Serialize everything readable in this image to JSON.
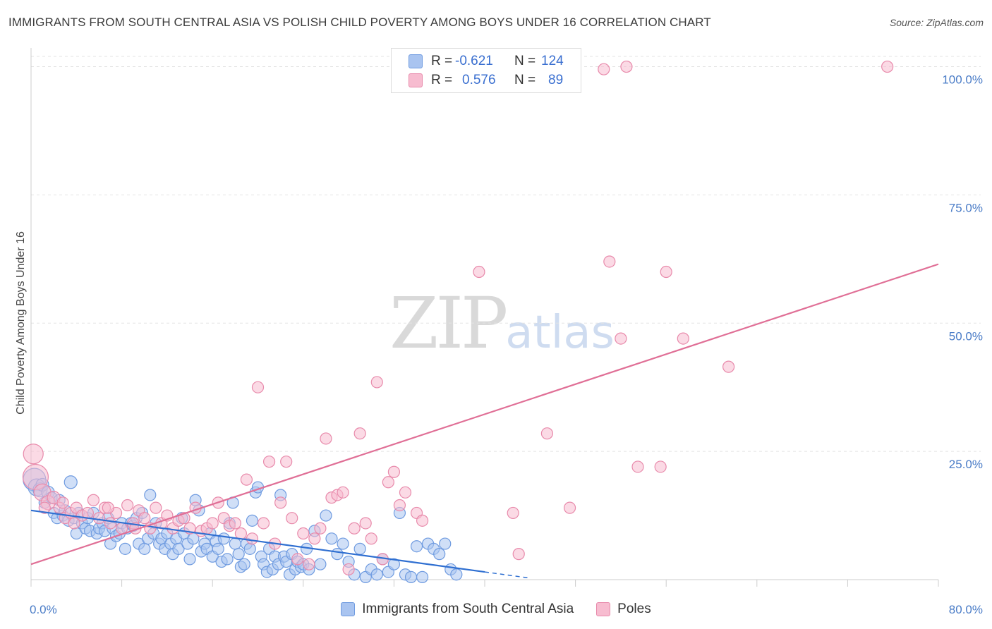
{
  "header": {
    "title": "IMMIGRANTS FROM SOUTH CENTRAL ASIA VS POLISH CHILD POVERTY AMONG BOYS UNDER 16 CORRELATION CHART",
    "source": "Source: ZipAtlas.com"
  },
  "watermark": {
    "zip": "ZIP",
    "atlas": "atlas"
  },
  "legend_top": {
    "rows": [
      {
        "r_label": "R =",
        "r_value": "-0.621",
        "n_label": "N =",
        "n_value": "124",
        "color": "#a9c4f0",
        "border": "#6f9be0"
      },
      {
        "r_label": "R =",
        "r_value": "0.576",
        "n_label": "N =",
        "n_value": "89",
        "color": "#f7bcd0",
        "border": "#e88aab"
      }
    ]
  },
  "chart_data": {
    "type": "scatter",
    "title": "IMMIGRANTS FROM SOUTH CENTRAL ASIA VS POLISH CHILD POVERTY AMONG BOYS UNDER 16 CORRELATION CHART",
    "xlabel": "",
    "ylabel": "Child Poverty Among Boys Under 16",
    "xlim": [
      0,
      80
    ],
    "ylim": [
      0,
      102
    ],
    "x_tick_labels": [
      "0.0%",
      "80.0%"
    ],
    "y_ticks": [
      25,
      50,
      75,
      100
    ],
    "y_tick_labels": [
      "25.0%",
      "50.0%",
      "75.0%",
      "100.0%"
    ],
    "grid": true,
    "legend_position": "bottom",
    "series": [
      {
        "name": "Immigrants from South Central Asia",
        "color": "#a9c4f0",
        "edge": "#6f9be0",
        "line_color": "#2f6fd1",
        "trend": {
          "x0": 0,
          "y0": 13.5,
          "x1": 40,
          "y1": 1.5,
          "dash_to_x": 44
        },
        "points": [
          [
            0.3,
            19.5,
            16
          ],
          [
            0.5,
            18,
            12
          ],
          [
            0.8,
            17.5,
            10
          ],
          [
            1.0,
            18.5,
            9
          ],
          [
            1.2,
            15,
            8
          ],
          [
            1.5,
            17,
            9
          ],
          [
            1.8,
            16,
            8
          ],
          [
            2.0,
            13,
            8
          ],
          [
            2.3,
            12,
            8
          ],
          [
            2.5,
            15.5,
            8
          ],
          [
            2.8,
            12.5,
            8
          ],
          [
            3.0,
            13.5,
            8
          ],
          [
            3.3,
            11.5,
            8
          ],
          [
            3.5,
            19,
            9
          ],
          [
            3.8,
            12,
            8
          ],
          [
            4.0,
            9,
            8
          ],
          [
            4.2,
            13,
            8
          ],
          [
            4.5,
            11,
            8
          ],
          [
            4.8,
            10,
            8
          ],
          [
            5.0,
            12,
            8
          ],
          [
            5.2,
            9.5,
            8
          ],
          [
            5.5,
            13,
            8
          ],
          [
            5.8,
            9,
            8
          ],
          [
            6.0,
            10,
            8
          ],
          [
            6.3,
            11,
            8
          ],
          [
            6.5,
            9.5,
            8
          ],
          [
            6.8,
            12,
            8
          ],
          [
            7.0,
            7,
            8
          ],
          [
            7.2,
            10,
            8
          ],
          [
            7.5,
            8.5,
            8
          ],
          [
            7.8,
            9,
            8
          ],
          [
            8.0,
            11,
            8
          ],
          [
            8.3,
            6,
            8
          ],
          [
            8.5,
            10,
            8
          ],
          [
            8.8,
            11,
            8
          ],
          [
            9.0,
            10.5,
            8
          ],
          [
            9.3,
            12,
            8
          ],
          [
            9.5,
            7,
            8
          ],
          [
            9.8,
            13,
            8
          ],
          [
            10.0,
            6,
            8
          ],
          [
            10.3,
            8,
            8
          ],
          [
            10.5,
            16.5,
            8
          ],
          [
            10.8,
            9,
            8
          ],
          [
            11.0,
            11,
            8
          ],
          [
            11.3,
            7,
            8
          ],
          [
            11.5,
            8,
            8
          ],
          [
            11.8,
            6,
            8
          ],
          [
            12.0,
            9,
            8
          ],
          [
            12.3,
            7,
            8
          ],
          [
            12.5,
            5,
            8
          ],
          [
            12.8,
            8,
            8
          ],
          [
            13.0,
            6,
            8
          ],
          [
            13.3,
            12,
            8
          ],
          [
            13.5,
            9,
            8
          ],
          [
            13.8,
            7,
            8
          ],
          [
            14.0,
            4,
            8
          ],
          [
            14.3,
            8,
            8
          ],
          [
            14.5,
            15.5,
            8
          ],
          [
            14.8,
            13.5,
            8
          ],
          [
            15.0,
            5.5,
            8
          ],
          [
            15.3,
            7,
            8
          ],
          [
            15.5,
            6,
            8
          ],
          [
            15.8,
            9,
            8
          ],
          [
            16.0,
            4.5,
            8
          ],
          [
            16.3,
            7.5,
            8
          ],
          [
            16.5,
            6,
            8
          ],
          [
            16.8,
            3.5,
            8
          ],
          [
            17.0,
            8,
            8
          ],
          [
            17.3,
            4,
            8
          ],
          [
            17.5,
            11,
            8
          ],
          [
            17.8,
            15,
            8
          ],
          [
            18.0,
            7,
            8
          ],
          [
            18.3,
            5,
            8
          ],
          [
            18.5,
            2.5,
            8
          ],
          [
            18.8,
            3,
            8
          ],
          [
            19.0,
            7,
            8
          ],
          [
            19.3,
            6,
            8
          ],
          [
            19.5,
            11.5,
            8
          ],
          [
            19.8,
            17,
            8
          ],
          [
            20.0,
            18,
            8
          ],
          [
            20.3,
            4.5,
            8
          ],
          [
            20.5,
            3,
            8
          ],
          [
            20.8,
            1.5,
            8
          ],
          [
            21.0,
            6,
            8
          ],
          [
            21.3,
            2,
            8
          ],
          [
            21.5,
            4.5,
            8
          ],
          [
            21.8,
            3,
            8
          ],
          [
            22.0,
            16.5,
            8
          ],
          [
            22.3,
            4.5,
            8
          ],
          [
            22.5,
            3.5,
            8
          ],
          [
            22.8,
            1,
            8
          ],
          [
            23.0,
            5,
            8
          ],
          [
            23.3,
            2,
            8
          ],
          [
            23.5,
            3.5,
            8
          ],
          [
            23.8,
            2.5,
            8
          ],
          [
            24.0,
            3,
            8
          ],
          [
            24.3,
            6,
            8
          ],
          [
            24.5,
            2,
            8
          ],
          [
            25.0,
            9.5,
            8
          ],
          [
            25.5,
            3,
            8
          ],
          [
            26.0,
            12.5,
            8
          ],
          [
            26.5,
            8,
            8
          ],
          [
            27.0,
            5,
            8
          ],
          [
            27.5,
            7,
            8
          ],
          [
            28.0,
            3.5,
            8
          ],
          [
            28.5,
            1,
            8
          ],
          [
            29.0,
            6,
            8
          ],
          [
            29.5,
            0.5,
            8
          ],
          [
            30.0,
            2,
            8
          ],
          [
            30.5,
            1,
            8
          ],
          [
            31.0,
            4,
            8
          ],
          [
            31.5,
            1.5,
            8
          ],
          [
            32.0,
            3,
            8
          ],
          [
            32.5,
            13,
            8
          ],
          [
            33.0,
            1,
            8
          ],
          [
            33.5,
            0.5,
            8
          ],
          [
            34.0,
            6.5,
            8
          ],
          [
            34.5,
            0.5,
            8
          ],
          [
            35.0,
            7,
            8
          ],
          [
            35.5,
            6,
            8
          ],
          [
            36.0,
            5,
            8
          ],
          [
            36.5,
            7,
            8
          ],
          [
            37.0,
            2,
            8
          ],
          [
            37.5,
            1,
            8
          ]
        ]
      },
      {
        "name": "Poles",
        "color": "#f7bcd0",
        "edge": "#e88aab",
        "line_color": "#e06f96",
        "trend": {
          "x0": 0,
          "y0": 3,
          "x1": 80,
          "y1": 61.5
        },
        "points": [
          [
            0.2,
            24.5,
            14
          ],
          [
            0.4,
            20,
            18
          ],
          [
            1.0,
            17,
            12
          ],
          [
            1.5,
            15,
            10
          ],
          [
            2.0,
            16,
            9
          ],
          [
            2.5,
            14,
            8
          ],
          [
            3.0,
            12,
            8
          ],
          [
            3.5,
            13,
            8
          ],
          [
            4.0,
            14,
            8
          ],
          [
            4.5,
            12.5,
            8
          ],
          [
            5.0,
            13,
            8
          ],
          [
            5.5,
            15.5,
            8
          ],
          [
            6.0,
            12,
            8
          ],
          [
            6.5,
            14,
            8
          ],
          [
            7.0,
            11,
            8
          ],
          [
            7.5,
            13,
            8
          ],
          [
            8.0,
            10,
            8
          ],
          [
            8.5,
            14.5,
            8
          ],
          [
            9.0,
            11,
            8
          ],
          [
            9.5,
            13.5,
            8
          ],
          [
            10.0,
            12,
            8
          ],
          [
            10.5,
            10,
            8
          ],
          [
            11.0,
            14,
            8
          ],
          [
            11.5,
            11,
            8
          ],
          [
            12.0,
            12.5,
            8
          ],
          [
            12.5,
            10,
            8
          ],
          [
            13.0,
            11.5,
            8
          ],
          [
            13.5,
            12,
            8
          ],
          [
            14.0,
            10,
            8
          ],
          [
            14.5,
            14,
            8
          ],
          [
            15.0,
            9.5,
            8
          ],
          [
            15.5,
            10,
            8
          ],
          [
            16.0,
            11,
            8
          ],
          [
            16.5,
            15,
            8
          ],
          [
            17.0,
            12,
            8
          ],
          [
            17.5,
            10.5,
            8
          ],
          [
            18.0,
            11,
            8
          ],
          [
            18.5,
            9,
            8
          ],
          [
            19.0,
            19.5,
            8
          ],
          [
            19.5,
            8,
            8
          ],
          [
            20.0,
            37.5,
            8
          ],
          [
            20.5,
            11,
            8
          ],
          [
            21.0,
            23,
            8
          ],
          [
            21.5,
            7,
            8
          ],
          [
            22.0,
            15,
            8
          ],
          [
            22.5,
            23,
            8
          ],
          [
            23.0,
            12,
            8
          ],
          [
            23.5,
            4,
            8
          ],
          [
            24.0,
            9,
            8
          ],
          [
            24.5,
            3,
            8
          ],
          [
            25.0,
            8,
            8
          ],
          [
            25.5,
            10,
            8
          ],
          [
            26.0,
            27.5,
            8
          ],
          [
            26.5,
            16,
            8
          ],
          [
            27.0,
            16.5,
            8
          ],
          [
            27.5,
            17,
            8
          ],
          [
            28.0,
            2,
            8
          ],
          [
            28.5,
            10,
            8
          ],
          [
            29.0,
            28.5,
            8
          ],
          [
            29.5,
            11,
            8
          ],
          [
            30.0,
            8,
            8
          ],
          [
            30.5,
            38.5,
            8
          ],
          [
            31.0,
            4,
            8
          ],
          [
            31.5,
            19,
            8
          ],
          [
            32.0,
            21,
            8
          ],
          [
            32.5,
            14.5,
            8
          ],
          [
            33.0,
            17,
            8
          ],
          [
            34.0,
            13,
            8
          ],
          [
            34.5,
            11.5,
            8
          ],
          [
            39.5,
            60,
            8
          ],
          [
            42.5,
            13,
            8
          ],
          [
            43.0,
            5,
            8
          ],
          [
            45.5,
            28.5,
            8
          ],
          [
            47.5,
            14,
            8
          ],
          [
            50.5,
            99.5,
            8
          ],
          [
            52.5,
            100,
            8
          ],
          [
            51.0,
            62,
            8
          ],
          [
            52.0,
            47,
            8
          ],
          [
            53.5,
            22,
            8
          ],
          [
            55.5,
            22,
            8
          ],
          [
            56.0,
            60,
            8
          ],
          [
            57.5,
            47,
            8
          ],
          [
            61.5,
            41.5,
            8
          ],
          [
            75.5,
            100,
            8
          ],
          [
            1.2,
            14,
            8
          ],
          [
            2.8,
            15,
            8
          ],
          [
            6.8,
            14,
            8
          ],
          [
            9.2,
            10,
            8
          ],
          [
            3.8,
            11,
            8
          ]
        ]
      }
    ]
  }
}
